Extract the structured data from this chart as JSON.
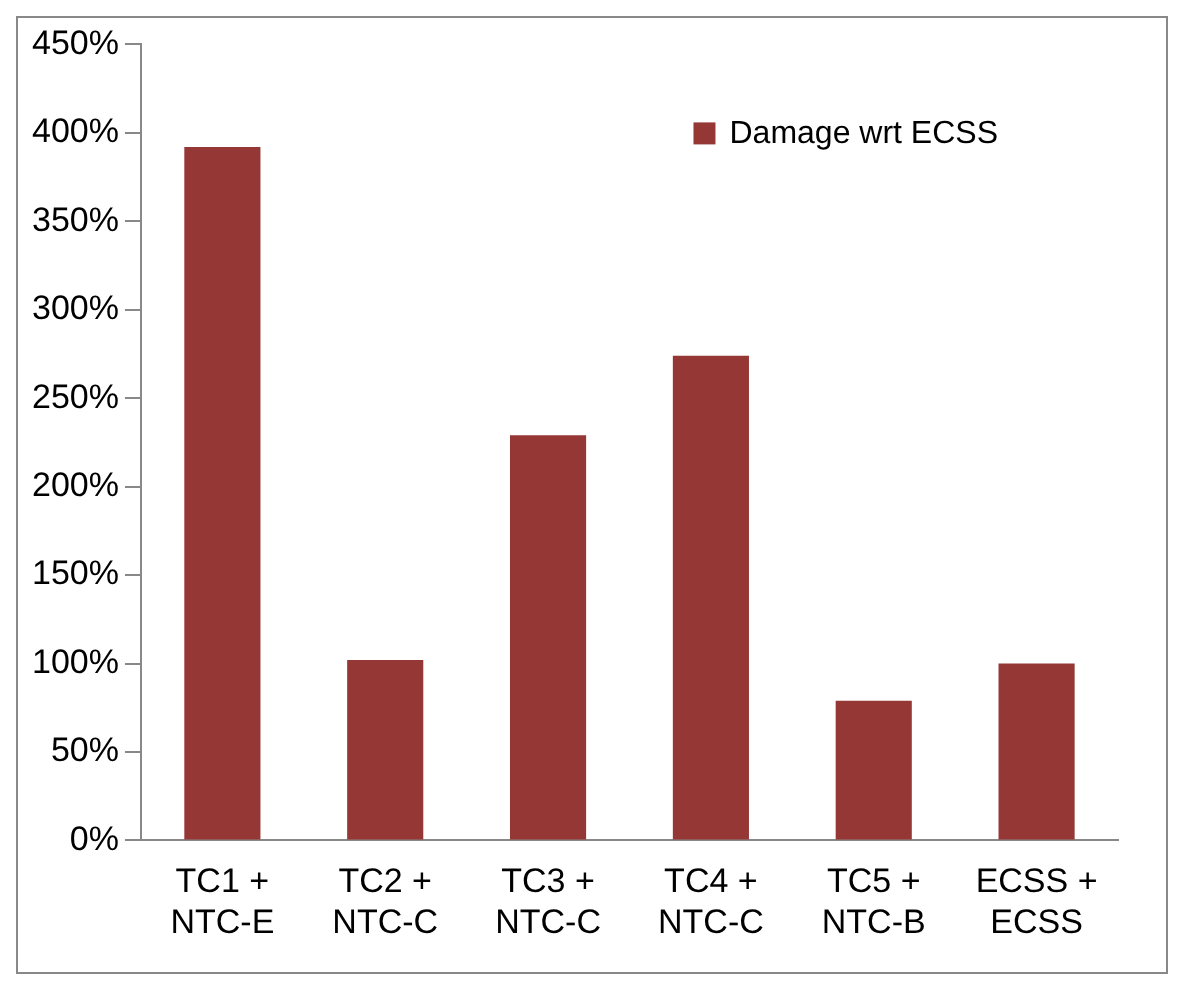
{
  "chart_data": {
    "type": "bar",
    "categories": [
      "TC1 +\nNTC-E",
      "TC2 +\nNTC-C",
      "TC3 +\nNTC-C",
      "TC4 +\nNTC-C",
      "TC5 +\nNTC-B",
      "ECSS +\nECSS"
    ],
    "series": [
      {
        "name": "Damage wrt ECSS",
        "color": "#953735",
        "values": [
          392,
          102,
          229,
          274,
          79,
          100
        ]
      }
    ],
    "ylim": [
      0,
      450
    ],
    "yticks": [
      {
        "value": 0,
        "label": "0%"
      },
      {
        "value": 50,
        "label": "50%"
      },
      {
        "value": 100,
        "label": "100%"
      },
      {
        "value": 150,
        "label": "150%"
      },
      {
        "value": 200,
        "label": "200%"
      },
      {
        "value": 250,
        "label": "250%"
      },
      {
        "value": 300,
        "label": "300%"
      },
      {
        "value": 350,
        "label": "350%"
      },
      {
        "value": 400,
        "label": "400%"
      },
      {
        "value": 450,
        "label": "450%"
      }
    ],
    "grid": false,
    "legend": "top right"
  }
}
